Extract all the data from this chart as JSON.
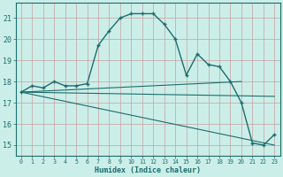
{
  "xlabel": "Humidex (Indice chaleur)",
  "bg_color": "#cceee8",
  "grid_color": "#bbddcc",
  "line_color": "#1a6e6e",
  "xlim": [
    -0.5,
    23.5
  ],
  "ylim": [
    14.5,
    21.7
  ],
  "yticks": [
    15,
    16,
    17,
    18,
    19,
    20,
    21
  ],
  "xticks": [
    0,
    1,
    2,
    3,
    4,
    5,
    6,
    7,
    8,
    9,
    10,
    11,
    12,
    13,
    14,
    15,
    16,
    17,
    18,
    19,
    20,
    21,
    22,
    23
  ],
  "series_main": {
    "x": [
      0,
      1,
      2,
      3,
      4,
      5,
      6,
      7,
      8,
      9,
      10,
      11,
      12,
      13,
      14,
      15,
      16,
      17,
      18,
      19,
      20,
      21,
      22,
      23
    ],
    "y": [
      17.5,
      17.8,
      17.7,
      18.0,
      17.8,
      17.8,
      17.9,
      19.7,
      20.4,
      21.0,
      21.2,
      21.2,
      21.2,
      20.7,
      20.0,
      18.3,
      19.3,
      18.8,
      18.7,
      18.0,
      17.0,
      15.1,
      15.0,
      15.5
    ]
  },
  "series_flat": {
    "x": [
      0,
      20
    ],
    "y": [
      17.5,
      18.0
    ]
  },
  "series_down": {
    "x": [
      0,
      23
    ],
    "y": [
      17.5,
      15.0
    ]
  },
  "series_mid": {
    "x": [
      0,
      23
    ],
    "y": [
      17.5,
      17.3
    ]
  }
}
